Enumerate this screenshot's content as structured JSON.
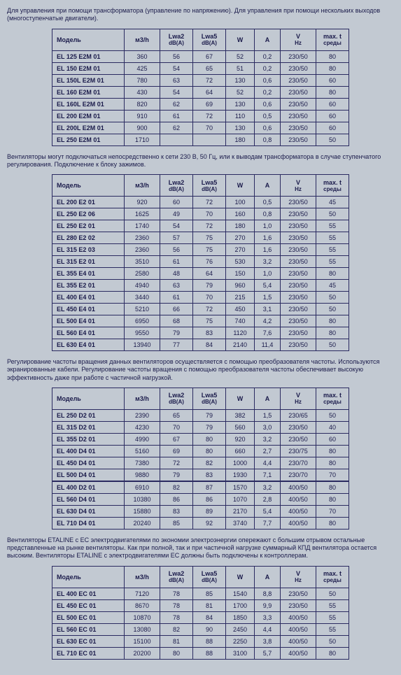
{
  "headers": {
    "model": "Модель",
    "m3h": "м3/h",
    "lwa2": "Lwa2",
    "lwa5": "Lwa5",
    "dba": "dB(A)",
    "w": "W",
    "a": "A",
    "v": "V",
    "hz": "Hz",
    "maxt": "max. t",
    "sredy": "среды"
  },
  "para1": "Для управления при помощи трансформатора (управление по напряжению). Для управления при помощи нескольких выходов (многоступенчатые двигатели).",
  "table1": [
    {
      "model": "EL 125 E2M 01",
      "m3h": "360",
      "lwa2": "56",
      "lwa5": "67",
      "w": "52",
      "a": "0,2",
      "vhz": "230/50",
      "maxt": "80"
    },
    {
      "model": "EL 150 E2M 01",
      "m3h": "425",
      "lwa2": "54",
      "lwa5": "65",
      "w": "51",
      "a": "0,2",
      "vhz": "230/50",
      "maxt": "80"
    },
    {
      "model": "EL 150L E2M 01",
      "m3h": "780",
      "lwa2": "63",
      "lwa5": "72",
      "w": "130",
      "a": "0,6",
      "vhz": "230/50",
      "maxt": "60"
    },
    {
      "model": "EL 160 E2M 01",
      "m3h": "430",
      "lwa2": "54",
      "lwa5": "64",
      "w": "52",
      "a": "0,2",
      "vhz": "230/50",
      "maxt": "80"
    },
    {
      "model": "EL 160L E2M 01",
      "m3h": "820",
      "lwa2": "62",
      "lwa5": "69",
      "w": "130",
      "a": "0,6",
      "vhz": "230/50",
      "maxt": "60"
    },
    {
      "model": "EL 200 E2M 01",
      "m3h": "910",
      "lwa2": "61",
      "lwa5": "72",
      "w": "110",
      "a": "0,5",
      "vhz": "230/50",
      "maxt": "60"
    },
    {
      "model": "EL 200L E2M 01",
      "m3h": "900",
      "lwa2": "62",
      "lwa5": "70",
      "w": "130",
      "a": "0,6",
      "vhz": "230/50",
      "maxt": "60"
    },
    {
      "model": "EL 250 E2M 01",
      "m3h": "1710",
      "lwa2": "",
      "lwa5": "",
      "w": "180",
      "a": "0,8",
      "vhz": "230/50",
      "maxt": "50"
    }
  ],
  "para2": "Вентиляторы могут подключаться непосредственно к сети 230 В, 50 Гц, или к выводам трансформатора в случае ступенчатого регулирования. Подключение к блоку зажимов.",
  "table2": [
    {
      "model": "EL 200 E2 01",
      "m3h": "920",
      "lwa2": "60",
      "lwa5": "72",
      "w": "100",
      "a": "0,5",
      "vhz": "230/50",
      "maxt": "45"
    },
    {
      "model": "EL 250 E2 06",
      "m3h": "1625",
      "lwa2": "49",
      "lwa5": "70",
      "w": "160",
      "a": "0,8",
      "vhz": "230/50",
      "maxt": "50"
    },
    {
      "model": "EL 250 E2 01",
      "m3h": "1740",
      "lwa2": "54",
      "lwa5": "72",
      "w": "180",
      "a": "1,0",
      "vhz": "230/50",
      "maxt": "55"
    },
    {
      "model": "EL 280 E2 02",
      "m3h": "2360",
      "lwa2": "57",
      "lwa5": "75",
      "w": "270",
      "a": "1,6",
      "vhz": "230/50",
      "maxt": "55"
    },
    {
      "model": "EL 315 E2 03",
      "m3h": "2360",
      "lwa2": "56",
      "lwa5": "75",
      "w": "270",
      "a": "1,6",
      "vhz": "230/50",
      "maxt": "55"
    },
    {
      "model": "EL 315 E2 01",
      "m3h": "3510",
      "lwa2": "61",
      "lwa5": "76",
      "w": "530",
      "a": "3,2",
      "vhz": "230/50",
      "maxt": "55"
    },
    {
      "model": "EL 355 E4 01",
      "m3h": "2580",
      "lwa2": "48",
      "lwa5": "64",
      "w": "150",
      "a": "1,0",
      "vhz": "230/50",
      "maxt": "80"
    },
    {
      "model": "EL 355 E2 01",
      "m3h": "4940",
      "lwa2": "63",
      "lwa5": "79",
      "w": "960",
      "a": "5,4",
      "vhz": "230/50",
      "maxt": "45"
    },
    {
      "model": "EL 400 E4 01",
      "m3h": "3440",
      "lwa2": "61",
      "lwa5": "70",
      "w": "215",
      "a": "1,5",
      "vhz": "230/50",
      "maxt": "50"
    },
    {
      "model": "EL 450 E4 01",
      "m3h": "5210",
      "lwa2": "66",
      "lwa5": "72",
      "w": "450",
      "a": "3,1",
      "vhz": "230/50",
      "maxt": "50"
    },
    {
      "model": "EL 500 E4 01",
      "m3h": "6950",
      "lwa2": "68",
      "lwa5": "75",
      "w": "740",
      "a": "4,2",
      "vhz": "230/50",
      "maxt": "80"
    },
    {
      "model": "EL 560 E4 01",
      "m3h": "9550",
      "lwa2": "79",
      "lwa5": "83",
      "w": "1120",
      "a": "7,6",
      "vhz": "230/50",
      "maxt": "80"
    },
    {
      "model": "EL 630 E4 01",
      "m3h": "13940",
      "lwa2": "77",
      "lwa5": "84",
      "w": "2140",
      "a": "11,4",
      "vhz": "230/50",
      "maxt": "50"
    }
  ],
  "para3": "Регулирование частоты вращения данных вентиляторов осуществляется с помощью преобразователя частоты. Используются экранированные кабели. Регулирование частоты вращения с помощью преобразователя частоты обеспечивает высокую эффективность даже при работе с частичной нагрузкой.",
  "table3": [
    {
      "model": "EL 250 D2 01",
      "m3h": "2390",
      "lwa2": "65",
      "lwa5": "79",
      "w": "382",
      "a": "1,5",
      "vhz": "230/65",
      "maxt": "50",
      "sep": false
    },
    {
      "model": "EL 315 D2 01",
      "m3h": "4230",
      "lwa2": "70",
      "lwa5": "79",
      "w": "560",
      "a": "3,0",
      "vhz": "230/50",
      "maxt": "40",
      "sep": false
    },
    {
      "model": "EL 355 D2 01",
      "m3h": "4990",
      "lwa2": "67",
      "lwa5": "80",
      "w": "920",
      "a": "3,2",
      "vhz": "230/50",
      "maxt": "60",
      "sep": false
    },
    {
      "model": "EL 400 D4 01",
      "m3h": "5160",
      "lwa2": "69",
      "lwa5": "80",
      "w": "660",
      "a": "2,7",
      "vhz": "230/75",
      "maxt": "80",
      "sep": false
    },
    {
      "model": "EL 450 D4 01",
      "m3h": "7380",
      "lwa2": "72",
      "lwa5": "82",
      "w": "1000",
      "a": "4,4",
      "vhz": "230/70",
      "maxt": "80",
      "sep": false
    },
    {
      "model": "EL 500 D4 01",
      "m3h": "9880",
      "lwa2": "79",
      "lwa5": "83",
      "w": "1930",
      "a": "7,1",
      "vhz": "230/70",
      "maxt": "70",
      "sep": false
    },
    {
      "model": "EL 400 D2 01",
      "m3h": "6910",
      "lwa2": "82",
      "lwa5": "87",
      "w": "1570",
      "a": "3,2",
      "vhz": "400/50",
      "maxt": "80",
      "sep": true
    },
    {
      "model": "EL 560 D4 01",
      "m3h": "10380",
      "lwa2": "86",
      "lwa5": "86",
      "w": "1070",
      "a": "2,8",
      "vhz": "400/50",
      "maxt": "80",
      "sep": false
    },
    {
      "model": "EL 630 D4 01",
      "m3h": "15880",
      "lwa2": "83",
      "lwa5": "89",
      "w": "2170",
      "a": "5,4",
      "vhz": "400/50",
      "maxt": "70",
      "sep": false
    },
    {
      "model": "EL 710 D4 01",
      "m3h": "20240",
      "lwa2": "85",
      "lwa5": "92",
      "w": "3740",
      "a": "7,7",
      "vhz": "400/50",
      "maxt": "80",
      "sep": false
    }
  ],
  "para4": "Вентиляторы ETALINE с EC электродвигателями по экономии электроэнергии опережают с большим отрывом остальные представленные на рынке вентиляторы. Как при полной, так и при частичной нагрузке суммарный КПД вентилятора остается высоким. Вентиляторы ETALINE с электродвигателями EC должны быть подключены к контроллерам.",
  "table4": [
    {
      "model": "EL 400 EC 01",
      "m3h": "7120",
      "lwa2": "78",
      "lwa5": "85",
      "w": "1540",
      "a": "8,8",
      "vhz": "230/50",
      "maxt": "50"
    },
    {
      "model": "EL 450 EC 01",
      "m3h": "8670",
      "lwa2": "78",
      "lwa5": "81",
      "w": "1700",
      "a": "9,9",
      "vhz": "230/50",
      "maxt": "55"
    },
    {
      "model": "EL 500 EC 01",
      "m3h": "10870",
      "lwa2": "78",
      "lwa5": "84",
      "w": "1850",
      "a": "3,3",
      "vhz": "400/50",
      "maxt": "55"
    },
    {
      "model": "EL 560 EC 01",
      "m3h": "13080",
      "lwa2": "82",
      "lwa5": "90",
      "w": "2450",
      "a": "4,4",
      "vhz": "400/50",
      "maxt": "55"
    },
    {
      "model": "EL 630 EC 01",
      "m3h": "15100",
      "lwa2": "81",
      "lwa5": "88",
      "w": "2250",
      "a": "3,8",
      "vhz": "400/50",
      "maxt": "50"
    },
    {
      "model": "EL 710 EC 01",
      "m3h": "20200",
      "lwa2": "80",
      "lwa5": "88",
      "w": "3100",
      "a": "5,7",
      "vhz": "400/50",
      "maxt": "80"
    }
  ],
  "colwidths": {
    "model": "92",
    "m3h": "42",
    "lwa2": "38",
    "lwa5": "38",
    "w": "32",
    "a": "28",
    "vhz": "42",
    "maxt": "38"
  }
}
